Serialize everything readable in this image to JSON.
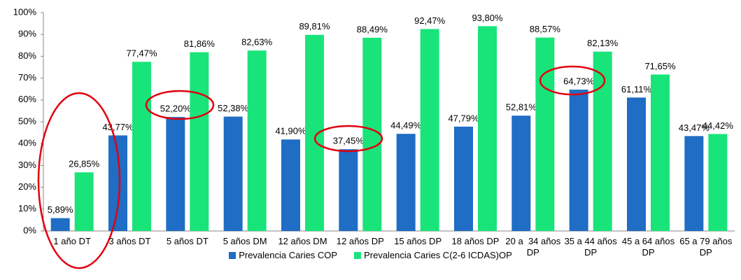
{
  "chart_data": {
    "type": "bar",
    "categories": [
      "1 año DT",
      "3 años DT",
      "5 años DT",
      "5 años DM",
      "12 años DM",
      "12 años DP",
      "15 años DP",
      "18 años DP",
      "20 a  34 años DP",
      "35 a 44 años DP",
      "45 a 64 años DP",
      "65 a 79 años DP"
    ],
    "series": [
      {
        "name": "Prevalencia Caries COP",
        "color": "#1f6dc4",
        "values": [
          5.89,
          43.77,
          52.2,
          52.38,
          41.9,
          37.45,
          44.49,
          47.79,
          52.81,
          64.73,
          61.11,
          43.47
        ],
        "value_labels": [
          "5,89%",
          "43,77%",
          "52,20%",
          "52,38%",
          "41,90%",
          "37,45%",
          "44,49%",
          "47,79%",
          "52,81%",
          "64,73%",
          "61,11%",
          "43,47%"
        ]
      },
      {
        "name": "Prevalencia Caries C(2-6 ICDAS)OP",
        "color": "#19e47a",
        "values": [
          26.85,
          77.47,
          81.86,
          82.63,
          89.81,
          88.49,
          92.47,
          93.8,
          88.57,
          82.13,
          71.65,
          44.42
        ],
        "value_labels": [
          "26,85%",
          "77,47%",
          "81,86%",
          "82,63%",
          "89,81%",
          "88,49%",
          "92,47%",
          "93,80%",
          "88,57%",
          "82,13%",
          "71,65%",
          "44,42%"
        ]
      }
    ],
    "ylim": [
      0,
      100
    ],
    "yticks": [
      {
        "value": 0,
        "label": "0%"
      },
      {
        "value": 10,
        "label": "10%"
      },
      {
        "value": 20,
        "label": "20%"
      },
      {
        "value": 30,
        "label": "30%"
      },
      {
        "value": 40,
        "label": "40%"
      },
      {
        "value": 50,
        "label": "50%"
      },
      {
        "value": 60,
        "label": "60%"
      },
      {
        "value": 70,
        "label": "70%"
      },
      {
        "value": 80,
        "label": "80%"
      },
      {
        "value": 90,
        "label": "90%"
      },
      {
        "value": 100,
        "label": "100%"
      }
    ],
    "grid": false
  }
}
